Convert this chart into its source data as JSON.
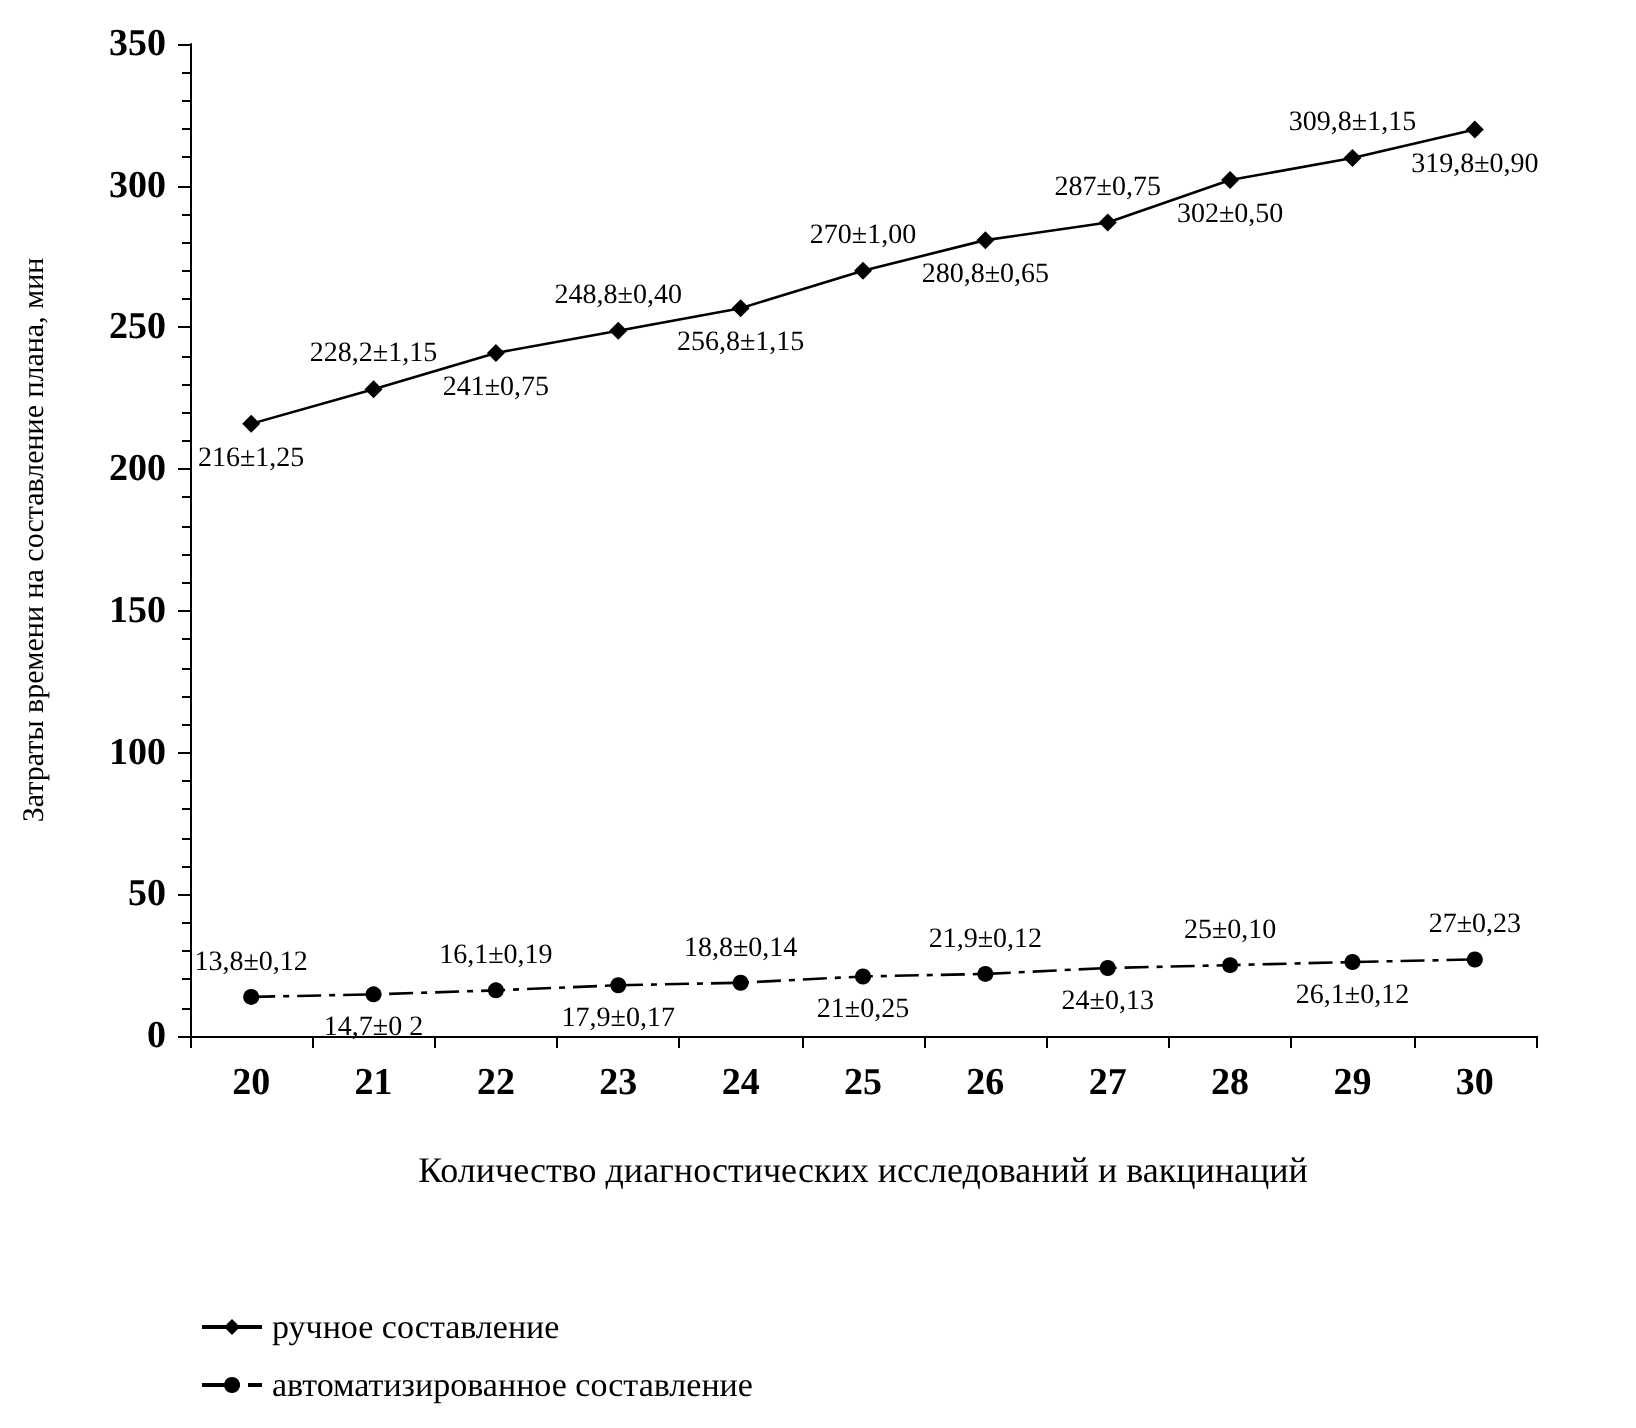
{
  "chart_data": {
    "type": "line",
    "xlabel": "Количество диагностических исследований и вакцинаций",
    "ylabel": "Затраты времени на составление плана, мин",
    "categories": [
      "20",
      "21",
      "22",
      "23",
      "24",
      "25",
      "26",
      "27",
      "28",
      "29",
      "30"
    ],
    "ylim": [
      0,
      350
    ],
    "yticks": [
      0,
      50,
      100,
      150,
      200,
      250,
      300,
      350
    ],
    "grid": false,
    "legend": "bottom",
    "series": [
      {
        "name": "ручное составление",
        "color": "#000000",
        "marker": "diamond",
        "line_style": "solid",
        "values": [
          216,
          228.2,
          241,
          248.8,
          256.8,
          270,
          280.8,
          287,
          302,
          309.8,
          319.8
        ],
        "value_labels": [
          "216±1,25",
          "228,2±1,15",
          "241±0,75",
          "248,8±0,40",
          "256,8±1,15",
          "270±1,00",
          "280,8±0,65",
          "287±0,75",
          "302±0,50",
          "309,8±1,15",
          "319,8±0,90"
        ]
      },
      {
        "name": "автоматизированное составление",
        "color": "#000000",
        "marker": "circle",
        "line_style": "dashed",
        "values": [
          13.8,
          14.7,
          16.1,
          17.9,
          18.8,
          21,
          21.9,
          24,
          25,
          26.1,
          27
        ],
        "value_labels": [
          "13,8±0,12",
          "14,7±0 2",
          "16,1±0,19",
          "17,9±0,17",
          "18,8±0,14",
          "21±0,25",
          "21,9±0,12",
          "24±0,13",
          "25±0,10",
          "26,1±0,12",
          "27±0,23"
        ]
      }
    ]
  }
}
